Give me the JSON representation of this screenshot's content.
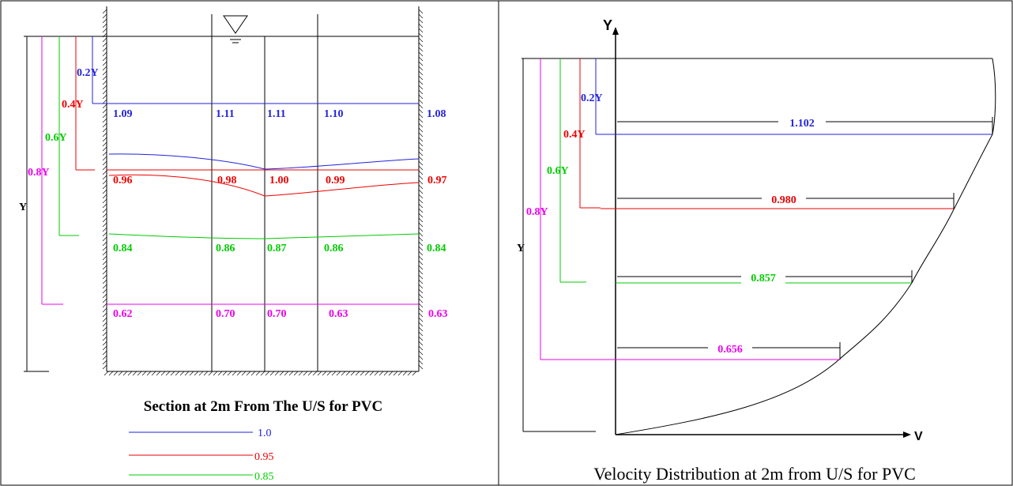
{
  "colors": {
    "blue": "#2222dd",
    "red": "#ee0000",
    "green": "#00cc00",
    "magenta": "#ee00ee",
    "black": "#000000"
  },
  "left_panel": {
    "title": "Section at 2m From The U/S for PVC",
    "depth_labels": {
      "y02": "0.2Y",
      "y04": "0.4Y",
      "y06": "0.6Y",
      "y08": "0.8Y",
      "y": "Y"
    },
    "rows": [
      {
        "level": "0.2Y",
        "color": "blue",
        "values": [
          "1.09",
          "1.11",
          "1.11",
          "1.10",
          "1.08"
        ]
      },
      {
        "level": "0.4Y",
        "color": "red",
        "values": [
          "0.96",
          "0.98",
          "1.00",
          "0.99",
          "0.97"
        ]
      },
      {
        "level": "0.6Y",
        "color": "green",
        "values": [
          "0.84",
          "0.86",
          "0.87",
          "0.86",
          "0.84"
        ]
      },
      {
        "level": "0.8Y",
        "color": "magenta",
        "values": [
          "0.62",
          "0.70",
          "0.70",
          "0.63",
          "0.63"
        ]
      }
    ],
    "legend": [
      {
        "label": "1.0",
        "color": "blue"
      },
      {
        "label": "0.95",
        "color": "red"
      },
      {
        "label": "0.85",
        "color": "green"
      }
    ]
  },
  "right_panel": {
    "title": "Velocity Distribution at 2m from U/S for PVC",
    "axis_y_label": "Y",
    "axis_x_label": "V",
    "depth_labels": {
      "y02": "0.2Y",
      "y04": "0.4Y",
      "y06": "0.6Y",
      "y08": "0.8Y",
      "y": "Y"
    },
    "velocities": [
      {
        "level": "0.2Y",
        "value": "1.102",
        "color": "blue"
      },
      {
        "level": "0.4Y",
        "value": "0.980",
        "color": "red"
      },
      {
        "level": "0.6Y",
        "value": "0.857",
        "color": "green"
      },
      {
        "level": "0.8Y",
        "value": "0.656",
        "color": "magenta"
      }
    ]
  }
}
